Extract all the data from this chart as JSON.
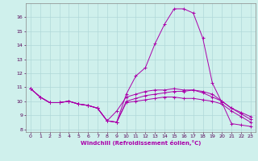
{
  "xlabel": "Windchill (Refroidissement éolien,°C)",
  "bg_color": "#cff0ec",
  "grid_color": "#b0d8d8",
  "line_color": "#aa00aa",
  "xlim": [
    -0.5,
    23.5
  ],
  "ylim": [
    7.8,
    17.0
  ],
  "yticks": [
    8,
    9,
    10,
    11,
    12,
    13,
    14,
    15,
    16
  ],
  "xticks": [
    0,
    1,
    2,
    3,
    4,
    5,
    6,
    7,
    8,
    9,
    10,
    11,
    12,
    13,
    14,
    15,
    16,
    17,
    18,
    19,
    20,
    21,
    22,
    23
  ],
  "series": [
    {
      "x": [
        0,
        1,
        2,
        3,
        4,
        5,
        6,
        7,
        8,
        9,
        10,
        11,
        12,
        13,
        14,
        15,
        16,
        17,
        18,
        19,
        20,
        21,
        22,
        23
      ],
      "y": [
        10.9,
        10.3,
        9.9,
        9.9,
        10.0,
        9.8,
        9.7,
        9.5,
        8.6,
        8.5,
        10.5,
        11.8,
        12.4,
        14.1,
        15.5,
        16.6,
        16.6,
        16.3,
        14.5,
        11.3,
        9.9,
        8.4,
        8.3,
        8.2
      ]
    },
    {
      "x": [
        0,
        1,
        2,
        3,
        4,
        5,
        6,
        7,
        8,
        9,
        10,
        11,
        12,
        13,
        14,
        15,
        16,
        17,
        18,
        19,
        20,
        21,
        22,
        23
      ],
      "y": [
        10.9,
        10.3,
        9.9,
        9.9,
        10.0,
        9.8,
        9.7,
        9.5,
        8.6,
        8.5,
        10.0,
        10.2,
        10.4,
        10.5,
        10.6,
        10.7,
        10.7,
        10.8,
        10.7,
        10.5,
        10.0,
        9.5,
        9.2,
        8.9
      ]
    },
    {
      "x": [
        0,
        1,
        2,
        3,
        4,
        5,
        6,
        7,
        8,
        9,
        10,
        11,
        12,
        13,
        14,
        15,
        16,
        17,
        18,
        19,
        20,
        21,
        22,
        23
      ],
      "y": [
        10.9,
        10.3,
        9.9,
        9.9,
        10.0,
        9.8,
        9.7,
        9.5,
        8.6,
        8.5,
        9.9,
        10.0,
        10.1,
        10.2,
        10.3,
        10.3,
        10.2,
        10.2,
        10.1,
        10.0,
        9.8,
        9.3,
        8.9,
        8.5
      ]
    },
    {
      "x": [
        0,
        1,
        2,
        3,
        4,
        5,
        6,
        7,
        8,
        9,
        10,
        11,
        12,
        13,
        14,
        15,
        16,
        17,
        18,
        19,
        20,
        21,
        22,
        23
      ],
      "y": [
        10.9,
        10.3,
        9.9,
        9.9,
        10.0,
        9.8,
        9.7,
        9.5,
        8.6,
        9.3,
        10.3,
        10.5,
        10.7,
        10.8,
        10.8,
        10.9,
        10.8,
        10.8,
        10.6,
        10.3,
        10.0,
        9.5,
        9.1,
        8.7
      ]
    }
  ]
}
